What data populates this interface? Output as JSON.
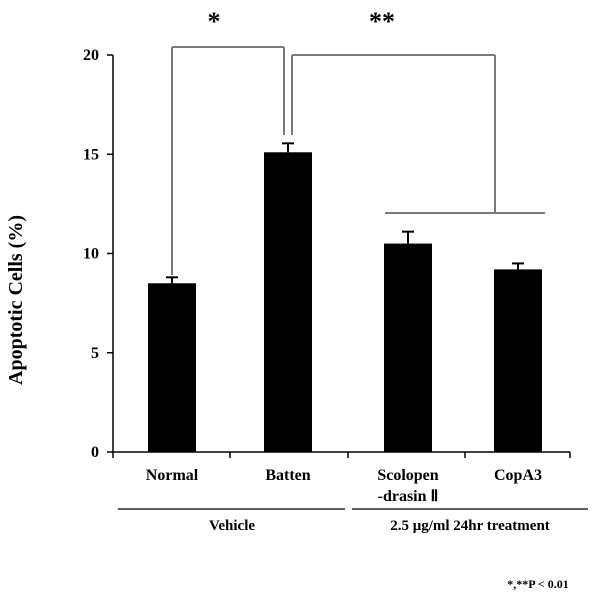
{
  "chart_data": {
    "type": "bar",
    "ylabel": "Apoptotic Cells (%)",
    "ylim": [
      0,
      20
    ],
    "yticks": [
      "0",
      "5",
      "10",
      "15",
      "20"
    ],
    "categories": [
      {
        "lines": [
          "Normal"
        ]
      },
      {
        "lines": [
          "Batten"
        ]
      },
      {
        "lines": [
          "Scolopen",
          "-drasin Ⅱ"
        ]
      },
      {
        "lines": [
          "CopA3"
        ]
      }
    ],
    "values": [
      8.5,
      15.1,
      10.5,
      9.2
    ],
    "errors": [
      0.3,
      0.45,
      0.6,
      0.3
    ],
    "bar_color": "#000000",
    "groups": [
      {
        "label": "Vehicle",
        "categories": [
          0,
          1
        ]
      },
      {
        "label": "2.5 μg/ml 24hr treatment",
        "categories": [
          2,
          3
        ]
      }
    ],
    "significance": [
      {
        "label": "*",
        "between": [
          0,
          1
        ]
      },
      {
        "label": "**",
        "between": [
          1,
          [
            2,
            3
          ]
        ]
      }
    ],
    "footnote": "*,**P < 0.01"
  }
}
